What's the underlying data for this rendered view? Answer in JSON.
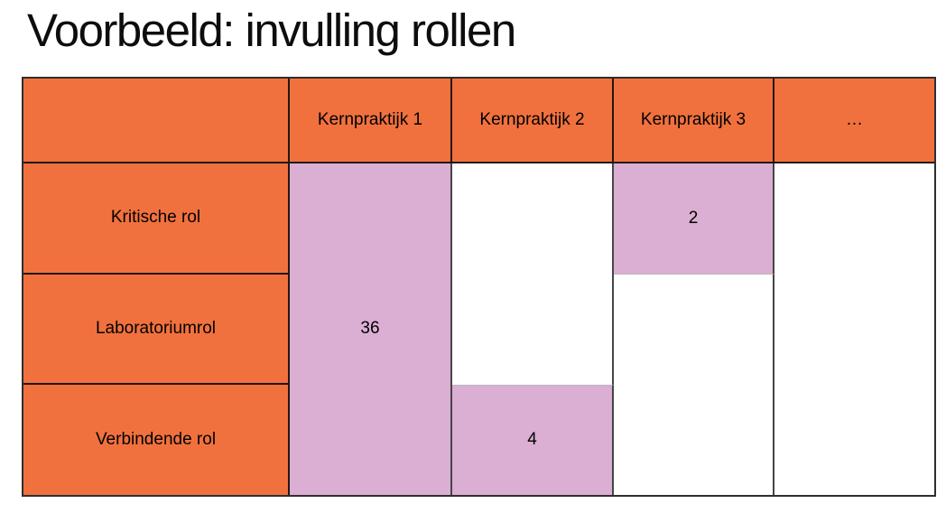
{
  "slide": {
    "title": "Voorbeeld: invulling rollen"
  },
  "colors": {
    "header_fill": "#F1713E",
    "highlight_fill": "#DBAED3",
    "grid_dark": "#201713",
    "grid_data": "#454545",
    "grid_light": "#B9B9B9",
    "text": "#000000",
    "background": "#FFFFFF"
  },
  "table": {
    "column_headers": [
      "",
      "Kernpraktijk 1",
      "Kernpraktijk 2",
      "Kernpraktijk 3",
      "…"
    ],
    "row_labels": [
      "Kritische rol",
      "Laboratoriumrol",
      "Verbindende rol"
    ],
    "filled_cells": [
      {
        "column": "Kernpraktijk 1",
        "rows": [
          "Kritische rol",
          "Laboratoriumrol",
          "Verbindende rol"
        ],
        "value": "36"
      },
      {
        "column": "Kernpraktijk 2",
        "rows": [
          "Verbindende rol"
        ],
        "value": "4"
      },
      {
        "column": "Kernpraktijk 3",
        "rows": [
          "Kritische rol"
        ],
        "value": "2"
      }
    ]
  }
}
